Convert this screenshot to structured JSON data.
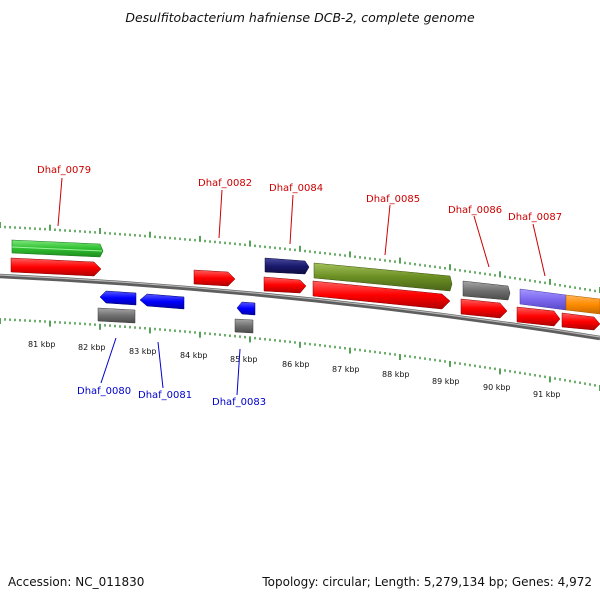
{
  "title": "Desulfitobacterium hafniense DCB-2, complete genome",
  "footer": {
    "accession": "Accession: NC_011830",
    "summary": "Topology: circular; Length: 5,279,134 bp; Genes: 4,972"
  },
  "scale_labels": [
    "81 kbp",
    "82 kbp",
    "83 kbp",
    "84 kbp",
    "85 kbp",
    "86 kbp",
    "87 kbp",
    "88 kbp",
    "89 kbp",
    "90 kbp",
    "91 kbp"
  ],
  "genes_top": [
    "Dhaf_0079",
    "Dhaf_0082",
    "Dhaf_0084",
    "Dhaf_0085",
    "Dhaf_0086",
    "Dhaf_0087"
  ],
  "genes_bottom": [
    "Dhaf_0080",
    "Dhaf_0081",
    "Dhaf_0083"
  ],
  "colors": {
    "forward_cds": "#ff0000",
    "reverse_cds": "#0000ff",
    "label_forward": "#cc0000",
    "label_reverse": "#0000cc",
    "tick": "#2e8b2e",
    "backbone": "#808080",
    "rna_green": "#33cc33",
    "dark_olive": "#6b8e23",
    "navy": "#1a1a6e",
    "gray_feature": "#707070",
    "purple": "#7b68ee",
    "orange": "#ff8c00"
  }
}
